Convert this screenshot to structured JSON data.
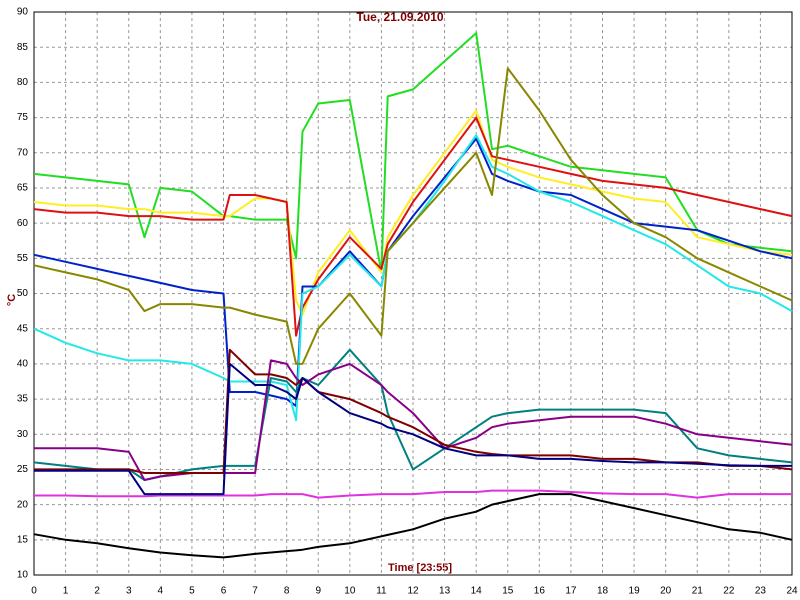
{
  "chart_data": {
    "type": "line",
    "title": "Tue, 21.09.2010",
    "y_label": "°C",
    "x_label": "Time [23:55]",
    "x": [
      0,
      1,
      2,
      3,
      3.5,
      4,
      5,
      6,
      6.2,
      7,
      7.5,
      8,
      8.3,
      8.5,
      9,
      10,
      11,
      11.2,
      12,
      13,
      14,
      14.5,
      15,
      16,
      17,
      18,
      19,
      20,
      21,
      22,
      23,
      24
    ],
    "xlim": [
      0,
      24
    ],
    "xticks": [
      0,
      1,
      2,
      3,
      4,
      5,
      6,
      7,
      8,
      9,
      10,
      11,
      12,
      13,
      14,
      15,
      16,
      17,
      18,
      19,
      20,
      21,
      22,
      23,
      24
    ],
    "ylim": [
      10,
      90
    ],
    "yticks": [
      10,
      15,
      20,
      25,
      30,
      35,
      40,
      45,
      50,
      55,
      60,
      65,
      70,
      75,
      80,
      85,
      90
    ],
    "grid": true,
    "series": [
      {
        "color": "#000000",
        "values": [
          15.8,
          15,
          14.5,
          13.8,
          13.5,
          13.2,
          12.8,
          12.5,
          12.6,
          13,
          13.2,
          13.4,
          13.5,
          13.6,
          14,
          14.5,
          15.5,
          15.7,
          16.5,
          18,
          19,
          20,
          20.5,
          21.5,
          21.5,
          20.5,
          19.5,
          18.5,
          17.5,
          16.5,
          16,
          15
        ]
      },
      {
        "color": "#e030e0",
        "values": [
          21.3,
          21.3,
          21.2,
          21.2,
          21.2,
          21.3,
          21.3,
          21.3,
          21.3,
          21.3,
          21.5,
          21.5,
          21.5,
          21.5,
          21,
          21.3,
          21.5,
          21.5,
          21.5,
          21.8,
          21.8,
          22,
          22,
          22,
          21.8,
          21.6,
          21.5,
          21.5,
          21,
          21.5,
          21.5,
          21.5
        ]
      },
      {
        "color": "#22dd22",
        "values": [
          67,
          66.5,
          66,
          65.5,
          58,
          65,
          64.5,
          61,
          61,
          60.5,
          60.5,
          60.5,
          55,
          73,
          77,
          77.5,
          53,
          78,
          79,
          83,
          87,
          70.5,
          71,
          69.5,
          68,
          67.5,
          67,
          66.5,
          59,
          57,
          56.5,
          56
        ]
      },
      {
        "color": "#ffee22",
        "values": [
          63,
          62.5,
          62.5,
          62,
          62,
          61.5,
          61.5,
          61,
          61,
          63.5,
          63.5,
          63,
          49,
          47,
          53,
          59,
          53,
          58,
          64,
          70,
          76,
          69,
          68,
          66.5,
          65.5,
          64.5,
          63.5,
          63,
          58,
          57,
          56,
          55.5
        ]
      },
      {
        "color": "#dd1111",
        "values": [
          62,
          61.5,
          61.5,
          61,
          61,
          61,
          60.5,
          60.5,
          64,
          64,
          63.5,
          63,
          44,
          48,
          52,
          58,
          53.5,
          57,
          63,
          69,
          75,
          69.5,
          69,
          68,
          67,
          66,
          65.5,
          65,
          64,
          63,
          62,
          61
        ]
      },
      {
        "color": "#0022cc",
        "values": [
          55.5,
          54.5,
          53.5,
          52.5,
          52,
          51.5,
          50.5,
          50,
          36,
          36,
          35.5,
          35,
          34,
          51,
          51,
          56,
          51,
          56,
          61,
          66.5,
          72,
          67,
          66,
          64.5,
          64,
          62,
          60,
          59.5,
          59,
          57.5,
          56,
          55
        ]
      },
      {
        "color": "#22e8e8",
        "values": [
          45,
          43,
          41.5,
          40.5,
          40.5,
          40.5,
          40,
          38,
          37.5,
          37.5,
          37.5,
          37,
          32,
          50,
          51,
          55.5,
          51,
          56,
          60,
          66,
          72.5,
          68,
          67,
          64.5,
          63,
          61,
          59,
          57,
          54,
          51,
          50,
          47.5
        ]
      },
      {
        "color": "#888800",
        "values": [
          54,
          53,
          52,
          50.5,
          47.5,
          48.5,
          48.5,
          48,
          48,
          47,
          46.5,
          46,
          40,
          40,
          45,
          50,
          44,
          56,
          60,
          65,
          70,
          64,
          82,
          76,
          69,
          64,
          60,
          58,
          55,
          53,
          51,
          49
        ]
      },
      {
        "color": "#008080",
        "values": [
          26,
          25.5,
          25,
          25,
          23.5,
          24,
          25,
          25.5,
          25.5,
          25.5,
          38,
          37.5,
          36,
          38,
          37,
          42,
          37,
          33,
          25,
          28,
          31,
          32.5,
          33,
          33.5,
          33.5,
          33.5,
          33.5,
          33,
          28,
          27,
          26.5,
          26
        ]
      },
      {
        "color": "#880088",
        "values": [
          28,
          28,
          28,
          27.5,
          23.5,
          24,
          24.5,
          24.5,
          24.5,
          24.5,
          40.5,
          40,
          38,
          37,
          38.5,
          40,
          37,
          36,
          33,
          28,
          29.5,
          31,
          31.5,
          32,
          32.5,
          32.5,
          32.5,
          31.5,
          30,
          29.5,
          29,
          28.5
        ]
      },
      {
        "color": "#800000",
        "values": [
          25,
          25,
          25,
          25,
          24.5,
          24.5,
          24.5,
          24.5,
          42,
          38.5,
          38.5,
          38,
          37,
          38,
          36,
          35,
          33,
          32.5,
          31,
          28.5,
          27.5,
          27.2,
          27,
          27,
          27,
          26.5,
          26.5,
          26,
          26,
          25.5,
          25.5,
          25
        ]
      },
      {
        "color": "#000080",
        "values": [
          24.8,
          24.8,
          24.8,
          24.8,
          21.5,
          21.5,
          21.5,
          21.5,
          40,
          37,
          37,
          36,
          35,
          38,
          36,
          33,
          31.5,
          31,
          30,
          28,
          27,
          27,
          27,
          26.5,
          26.5,
          26.2,
          26,
          26,
          25.8,
          25.6,
          25.5,
          25.5
        ]
      }
    ]
  }
}
